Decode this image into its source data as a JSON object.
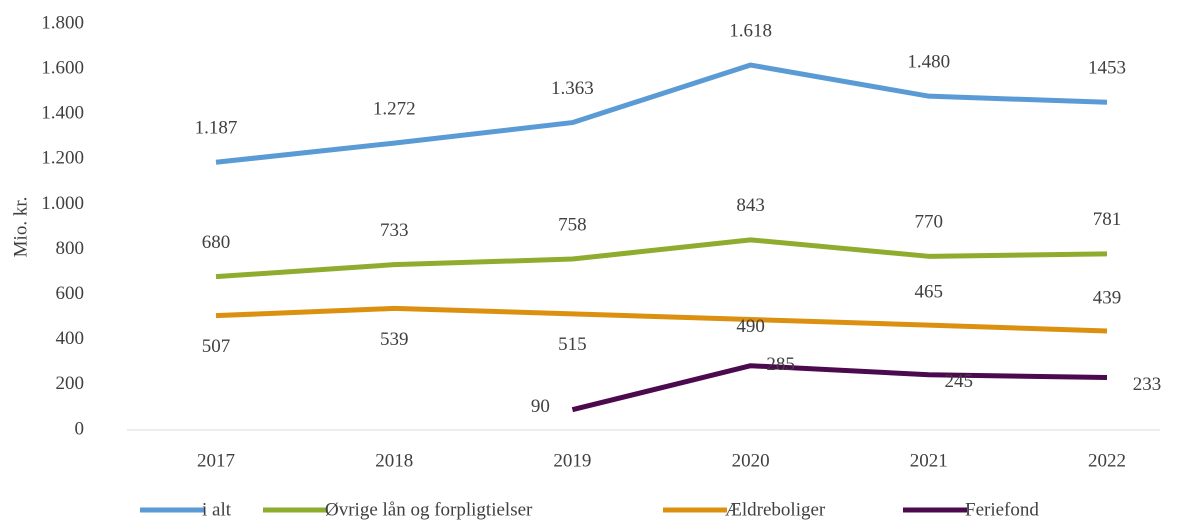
{
  "chart_data": {
    "type": "line",
    "y_axis_label": "Mio. kr.",
    "categories": [
      "2017",
      "2018",
      "2019",
      "2020",
      "2021",
      "2022"
    ],
    "series": [
      {
        "name": "i alt",
        "color": "#5b9bd5",
        "values": [
          1187,
          1272,
          1363,
          1618,
          1480,
          1453
        ],
        "value_labels": [
          "1.187",
          "1.272",
          "1.363",
          "1.618",
          "1.480",
          "1453"
        ]
      },
      {
        "name": "Øvrige lån  og forpligtielser",
        "color": "#8fac2e",
        "values": [
          680,
          733,
          758,
          843,
          770,
          781
        ]
      },
      {
        "name": "Ældreboliger",
        "color": "#dc9010",
        "values": [
          507,
          539,
          515,
          490,
          465,
          439
        ]
      },
      {
        "name": "Feriefond",
        "color": "#4b0a4e",
        "values": [
          null,
          null,
          90,
          285,
          245,
          233
        ]
      }
    ],
    "ylim": [
      0,
      1800
    ],
    "yticks": [
      0,
      200,
      400,
      600,
      800,
      {
        "value": 1000,
        "label": "1.000"
      },
      {
        "value": 1200,
        "label": "1.200"
      },
      {
        "value": 1400,
        "label": "1.400"
      },
      {
        "value": 1600,
        "label": "1.600"
      },
      {
        "value": 1800,
        "label": "1.800"
      }
    ],
    "grid": false,
    "legend": "bottom"
  }
}
